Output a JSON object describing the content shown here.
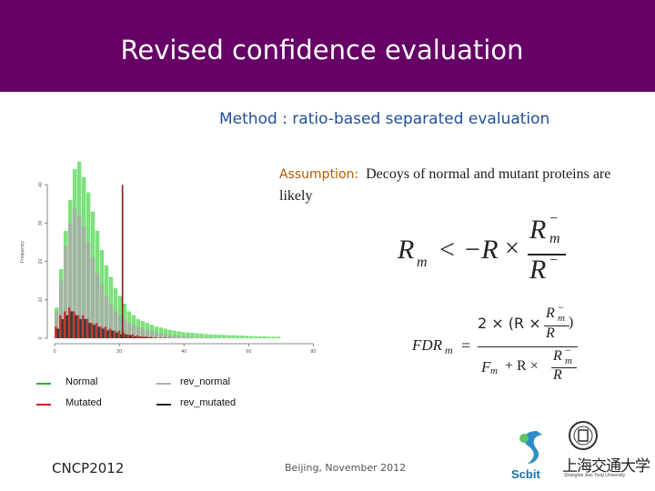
{
  "header": {
    "title": "Revised confidence evaluation"
  },
  "subtitle": "Method : ratio-based separated evaluation",
  "assumption": {
    "label": "Assumption:",
    "text": "Decoys of normal and mutant proteins are likely"
  },
  "equation1": {
    "lhs": "R",
    "lhs_sub": "m",
    "op": "<",
    "neg": "−R",
    "times": "×",
    "num": "R",
    "num_sub": "m",
    "num_sup": "−",
    "den": "R",
    "den_sup": "−"
  },
  "equation2": {
    "lhs": "FDR",
    "lhs_sub": "m",
    "eq": "=",
    "top_prefix": "2 × (R ×",
    "top_suffix": ")",
    "frac_num": "R",
    "frac_num_sub": "m",
    "frac_sup": "−",
    "frac_den": "R",
    "bottom_prefix": "F",
    "bottom_prefix_sub": "m",
    "bottom_mid": "+ R ×"
  },
  "chart_data": {
    "type": "bar",
    "ylabel": "Frequency",
    "xticks": [
      "0",
      "20",
      "40",
      "60",
      "80"
    ],
    "yticks": [
      "0",
      "10",
      "20",
      "30",
      "40"
    ],
    "xlim": [
      0,
      90
    ],
    "ylim": [
      0,
      45
    ],
    "threshold_x": 21,
    "series": [
      {
        "name": "Normal",
        "color": "#66dd66",
        "values": [
          8,
          18,
          28,
          36,
          44,
          46,
          42,
          38,
          33,
          28,
          23,
          19,
          16,
          13,
          11,
          9,
          7,
          6,
          5,
          4.5,
          4,
          3.5,
          3,
          2.8,
          2.5,
          2.2,
          2,
          1.8,
          1.6,
          1.5,
          1.4,
          1.3,
          1.2,
          1.1,
          1,
          1,
          0.9,
          0.9,
          0.8,
          0.8,
          0.7,
          0.7,
          0.6,
          0.6,
          0.5,
          0.5,
          0.5,
          0.4,
          0.4,
          0.4
        ]
      },
      {
        "name": "rev_normal",
        "color": "#aaaaaa",
        "values": [
          7,
          15,
          24,
          30,
          34,
          32,
          29,
          25,
          21,
          17,
          14,
          11,
          9,
          7,
          6,
          5,
          4,
          3.5,
          3,
          2.5,
          2,
          1.8,
          1.5,
          1.2,
          1,
          0.8,
          0.7,
          0.6,
          0.5,
          0.4,
          0.3,
          0.3,
          0.2,
          0.2,
          0.2,
          0.1,
          0.1,
          0.1,
          0,
          0,
          0,
          0,
          0,
          0,
          0,
          0,
          0,
          0,
          0,
          0
        ]
      },
      {
        "name": "Mutated",
        "color": "#cc2222",
        "values": [
          3,
          6,
          7,
          8,
          7,
          6,
          6,
          5,
          4,
          4,
          3,
          3,
          2.5,
          2,
          2,
          1.5,
          1,
          1,
          0.8,
          0.6,
          0.5,
          0.4,
          0.3,
          0.2,
          0.2,
          0.1,
          0,
          0,
          0,
          0,
          0,
          0,
          0,
          0,
          0,
          0,
          0,
          0,
          0,
          0,
          0,
          0,
          0,
          0,
          0,
          0,
          0,
          0,
          0,
          0
        ]
      },
      {
        "name": "rev_mutated",
        "color": "#222222",
        "values": [
          2.5,
          5,
          6,
          7,
          6,
          5,
          5,
          4,
          3.5,
          3,
          2.5,
          2,
          2,
          1.5,
          1,
          1,
          0.8,
          0.5,
          0.4,
          0.3,
          0.2,
          0.1,
          0,
          0,
          0,
          0,
          0,
          0,
          0,
          0,
          0,
          0,
          0,
          0,
          0,
          0,
          0,
          0,
          0,
          0,
          0,
          0,
          0,
          0,
          0,
          0,
          0,
          0,
          0,
          0
        ]
      }
    ]
  },
  "legend": [
    {
      "label": "Normal",
      "color": "#33aa33"
    },
    {
      "label": "rev_normal",
      "color": "#9fb6c8"
    },
    {
      "label": "Mutated",
      "color": "#cc2222"
    },
    {
      "label": "rev_mutated",
      "color": "#222222"
    }
  ],
  "footer": {
    "left": "CNCP2012",
    "center": "Beijing, November 2012",
    "logo1_text": "Scbit",
    "logo2_text": "上海交通大学",
    "logo2_sub": "Shanghai Jiao Tong University"
  }
}
